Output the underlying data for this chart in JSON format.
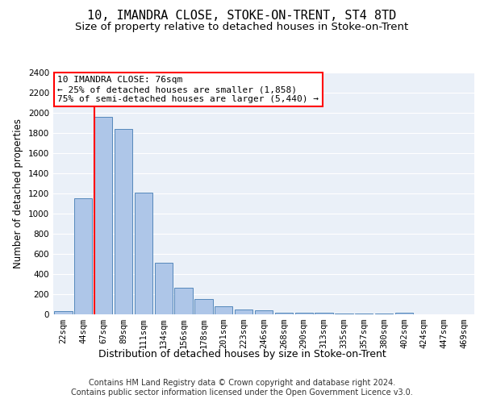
{
  "title": "10, IMANDRA CLOSE, STOKE-ON-TRENT, ST4 8TD",
  "subtitle": "Size of property relative to detached houses in Stoke-on-Trent",
  "xlabel": "Distribution of detached houses by size in Stoke-on-Trent",
  "ylabel": "Number of detached properties",
  "categories": [
    "22sqm",
    "44sqm",
    "67sqm",
    "89sqm",
    "111sqm",
    "134sqm",
    "156sqm",
    "178sqm",
    "201sqm",
    "223sqm",
    "246sqm",
    "268sqm",
    "290sqm",
    "313sqm",
    "335sqm",
    "357sqm",
    "380sqm",
    "402sqm",
    "424sqm",
    "447sqm",
    "469sqm"
  ],
  "values": [
    30,
    1150,
    1960,
    1840,
    1210,
    515,
    265,
    155,
    80,
    50,
    40,
    20,
    20,
    15,
    10,
    10,
    10,
    20,
    0,
    0,
    0
  ],
  "bar_color": "#aec6e8",
  "bar_edge_color": "#5588bb",
  "red_line_index": 2,
  "annotation_line1": "10 IMANDRA CLOSE: 76sqm",
  "annotation_line2": "← 25% of detached houses are smaller (1,858)",
  "annotation_line3": "75% of semi-detached houses are larger (5,440) →",
  "annotation_box_color": "white",
  "annotation_box_edge_color": "red",
  "ylim": [
    0,
    2400
  ],
  "yticks": [
    0,
    200,
    400,
    600,
    800,
    1000,
    1200,
    1400,
    1600,
    1800,
    2000,
    2200,
    2400
  ],
  "background_color": "#eaf0f8",
  "grid_color": "white",
  "footer_line1": "Contains HM Land Registry data © Crown copyright and database right 2024.",
  "footer_line2": "Contains public sector information licensed under the Open Government Licence v3.0.",
  "title_fontsize": 11,
  "subtitle_fontsize": 9.5,
  "xlabel_fontsize": 9,
  "ylabel_fontsize": 8.5,
  "tick_fontsize": 7.5,
  "annotation_fontsize": 8,
  "footer_fontsize": 7
}
